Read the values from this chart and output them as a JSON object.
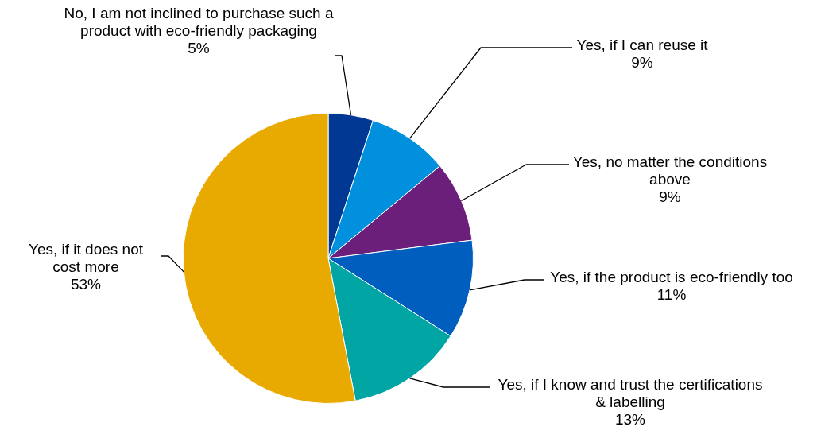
{
  "chart_data": {
    "type": "pie",
    "categories": [
      "No, I am not inclined to purchase such a product with eco-friendly packaging",
      "Yes, if I can reuse it",
      "Yes, no matter the conditions above",
      "Yes, if the product is eco-friendly too",
      "Yes, if I know and trust the certifications & labelling",
      "Yes, if it does not cost more"
    ],
    "values": [
      5,
      9,
      9,
      11,
      13,
      53
    ],
    "colors": [
      "#003893",
      "#0090dd",
      "#6c1f7a",
      "#005ebf",
      "#00a5a4",
      "#e8a900"
    ],
    "value_labels": [
      "5%",
      "9%",
      "9%",
      "11%",
      "13%",
      "53%"
    ],
    "legend": false
  }
}
